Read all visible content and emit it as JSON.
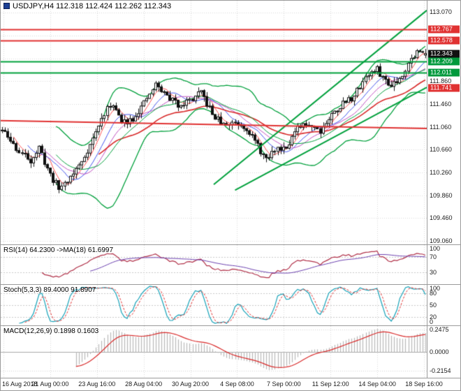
{
  "chart_data": {
    "type": "candlestick",
    "symbol": "USDJPY",
    "timeframe": "H4",
    "title": "USDJPY,H4 112.318 112.424 112.262 112.343",
    "last_candle": {
      "open": 112.318,
      "high": 112.424,
      "low": 112.262,
      "close": 112.343
    },
    "bars": 150,
    "price_path_anchors": [
      [
        0,
        111.0
      ],
      [
        6,
        110.62
      ],
      [
        10,
        110.48
      ],
      [
        13,
        110.68
      ],
      [
        17,
        110.22
      ],
      [
        20,
        109.98
      ],
      [
        24,
        110.18
      ],
      [
        28,
        110.45
      ],
      [
        32,
        110.85
      ],
      [
        36,
        111.3
      ],
      [
        39,
        111.48
      ],
      [
        42,
        111.12
      ],
      [
        46,
        111.22
      ],
      [
        50,
        111.46
      ],
      [
        54,
        111.8
      ],
      [
        58,
        111.6
      ],
      [
        62,
        111.45
      ],
      [
        66,
        111.52
      ],
      [
        70,
        111.65
      ],
      [
        74,
        111.28
      ],
      [
        78,
        111.08
      ],
      [
        82,
        111.15
      ],
      [
        86,
        111.05
      ],
      [
        90,
        110.72
      ],
      [
        93,
        110.47
      ],
      [
        96,
        110.66
      ],
      [
        100,
        110.73
      ],
      [
        104,
        111.02
      ],
      [
        108,
        111.12
      ],
      [
        112,
        111.0
      ],
      [
        116,
        111.27
      ],
      [
        120,
        111.47
      ],
      [
        124,
        111.6
      ],
      [
        128,
        111.95
      ],
      [
        132,
        112.06
      ],
      [
        136,
        111.8
      ],
      [
        140,
        111.9
      ],
      [
        143,
        112.18
      ],
      [
        146,
        112.37
      ],
      [
        149,
        112.343
      ]
    ],
    "price_axis": {
      "min": 109.0,
      "max": 113.27,
      "grid_start": 109.06,
      "grid_step": 0.4,
      "ticks": [
        {
          "label": "113.070",
          "price": 113.07
        },
        {
          "label": "111.860",
          "price": 111.86
        },
        {
          "label": "111.460",
          "price": 111.46
        },
        {
          "label": "111.060",
          "price": 111.06
        },
        {
          "label": "110.660",
          "price": 110.66
        },
        {
          "label": "110.260",
          "price": 110.26
        },
        {
          "label": "109.860",
          "price": 109.86
        },
        {
          "label": "109.460",
          "price": 109.46
        },
        {
          "label": "109.060",
          "price": 109.06
        }
      ],
      "badges": [
        {
          "label": "112.767",
          "price": 112.767,
          "color": "#e03232"
        },
        {
          "label": "112.578",
          "price": 112.578,
          "color": "#e03232"
        },
        {
          "label": "112.343",
          "price": 112.343,
          "color": "#111111"
        },
        {
          "label": "112.209",
          "price": 112.209,
          "color": "#00993c"
        },
        {
          "label": "112.011",
          "price": 112.011,
          "color": "#00993c"
        },
        {
          "label": "111.741",
          "price": 111.741,
          "color": "#e03232"
        }
      ]
    },
    "levels": {
      "resistance": [
        112.767,
        112.578
      ],
      "support": [
        112.209,
        112.011
      ]
    },
    "trendlines": [
      {
        "x1": 0.5,
        "p1": 110.05,
        "x2": 1.0,
        "p2": 113.1,
        "color": "#00a03c",
        "width": 2
      },
      {
        "x1": 0.55,
        "p1": 109.95,
        "x2": 1.0,
        "p2": 111.75,
        "color": "#00a03c",
        "width": 2
      },
      {
        "x1": 0.0,
        "p1": 111.17,
        "x2": 1.0,
        "p2": 111.03,
        "color": "#e03232",
        "width": 2
      }
    ],
    "moving_averages": [
      {
        "type": "sma",
        "period": 5,
        "color": "#ff5050",
        "width": 1
      },
      {
        "type": "sma",
        "period": 10,
        "color": "#4455ee",
        "width": 1
      },
      {
        "type": "sma",
        "period": 15,
        "color": "#c050c0",
        "width": 1
      },
      {
        "type": "ema",
        "period": 34,
        "color": "#d82a2a",
        "width": 1.6
      },
      {
        "type": "bollinger",
        "period": 20,
        "deviation": 2,
        "color": "#00a03c",
        "width": 1.3
      }
    ],
    "x_axis": {
      "labels": [
        "16 Aug 2018",
        "21 Aug 00:00",
        "23 Aug 16:00",
        "28 Aug 04:00",
        "30 Aug 20:00",
        "4 Sep 08:00",
        "7 Sep 00:00",
        "11 Sep 12:00",
        "14 Sep 04:00",
        "18 Sep 16:00"
      ]
    },
    "indicators": {
      "rsi": {
        "label": "RSI(14) 64.2300 ->MA(18) 61.6997",
        "period": 14,
        "ma_period": 18,
        "value": 64.23,
        "ma_value": 61.6997,
        "scale": [
          {
            "label": "100",
            "value": 100
          },
          {
            "label": "70",
            "value": 70
          },
          {
            "label": "30",
            "value": 30
          }
        ],
        "level_lines": [
          70,
          30
        ],
        "line_color": "#b03048",
        "ma_color": "#6a3fae"
      },
      "stoch": {
        "label": "Stoch(5,3,3) 89.4000 91.8907",
        "k_period": 5,
        "d_period": 3,
        "slowing": 3,
        "k_value": 89.4,
        "d_value": 91.8907,
        "scale": [
          {
            "label": "100",
            "value": 100
          },
          {
            "label": "80",
            "value": 80
          },
          {
            "label": "50",
            "value": 50
          },
          {
            "label": "20",
            "value": 20
          },
          {
            "label": "0",
            "value": 0
          }
        ],
        "level_lines": [
          80,
          50,
          20
        ],
        "k_color": "#17a2b8",
        "d_color": "#e03232"
      },
      "macd": {
        "label": "MACD(12,26,9) 0.1898 0.1603",
        "fast": 12,
        "slow": 26,
        "signal": 9,
        "main_value": 0.1898,
        "signal_value": 0.1603,
        "scale": [
          {
            "label": "0.2475",
            "value": 0.2475
          },
          {
            "label": "0.0000",
            "value": 0
          },
          {
            "label": "-0.2154",
            "value": -0.2154
          }
        ],
        "range": [
          -0.29,
          0.29
        ],
        "hist_color": "#b8b8b8",
        "signal_color": "#d82a2a"
      }
    },
    "colors": {
      "background": "#ffffff",
      "grid": "#d8d8d8",
      "candle_up": "#ffffff",
      "candle_down": "#111111",
      "candle_border": "#111111",
      "resistance": "#e03232",
      "support": "#00a03c",
      "axis_text": "#1a1a1a"
    }
  }
}
